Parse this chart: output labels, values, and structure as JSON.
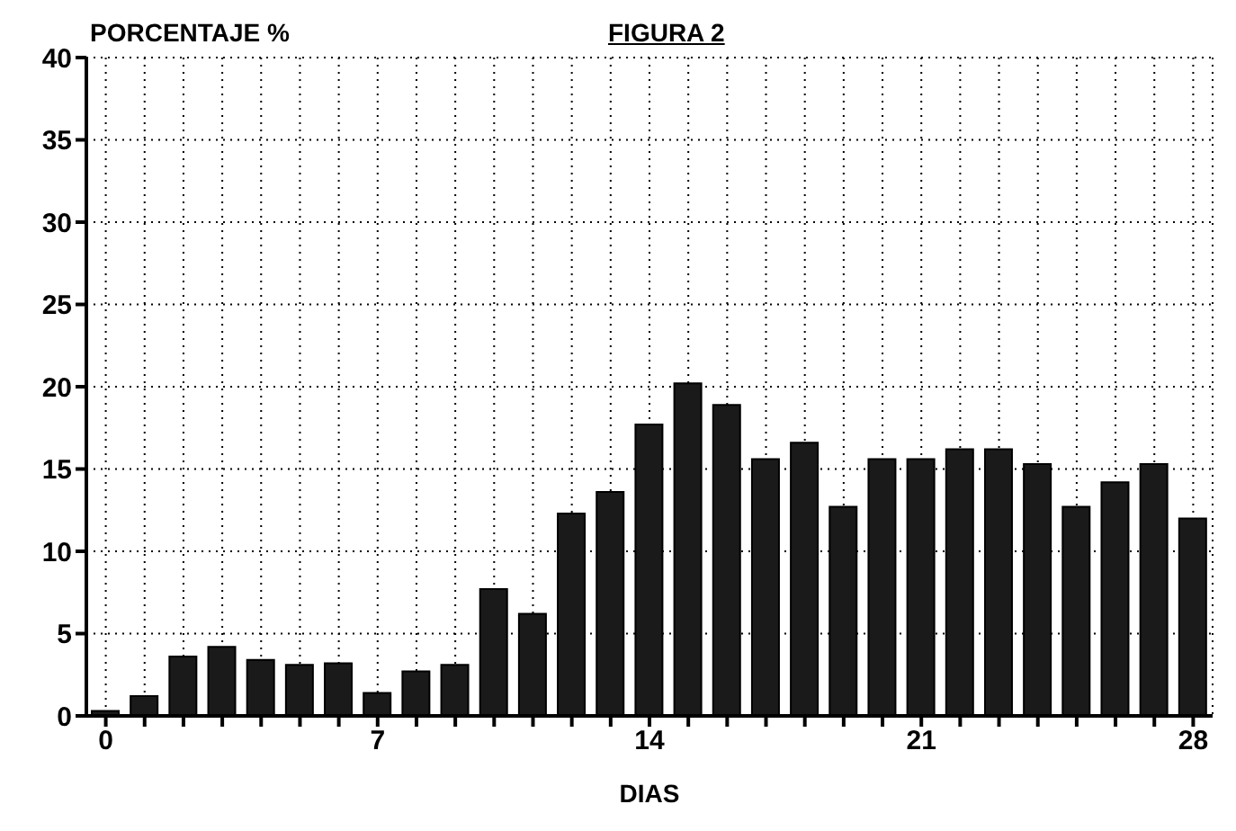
{
  "chart_data": {
    "type": "bar",
    "title": "FIGURA 2",
    "xlabel": "DIAS",
    "ylabel": "PORCENTAJE %",
    "x": [
      0,
      1,
      2,
      3,
      4,
      5,
      6,
      7,
      8,
      9,
      10,
      11,
      12,
      13,
      14,
      15,
      16,
      17,
      18,
      19,
      20,
      21,
      22,
      23,
      24,
      25,
      26,
      27,
      28
    ],
    "values": [
      0.3,
      1.2,
      3.6,
      4.2,
      3.4,
      3.1,
      3.2,
      1.4,
      2.7,
      3.1,
      7.7,
      6.2,
      12.3,
      13.6,
      17.7,
      20.2,
      18.9,
      15.6,
      16.6,
      12.7,
      15.6,
      15.6,
      16.2,
      16.2,
      15.3,
      12.7,
      14.2,
      15.3,
      12.0
    ],
    "color": "#1a1a1a",
    "xlim": [
      -0.5,
      28.5
    ],
    "xticks": [
      0,
      {
        "value": 1,
        "label": null
      },
      {
        "value": 2,
        "label": null
      },
      {
        "value": 3,
        "label": null
      },
      {
        "value": 4,
        "label": null
      },
      {
        "value": 5,
        "label": null
      },
      {
        "value": 6,
        "label": null
      },
      7,
      {
        "value": 8,
        "label": null
      },
      {
        "value": 9,
        "label": null
      },
      {
        "value": 10,
        "label": null
      },
      {
        "value": 11,
        "label": null
      },
      {
        "value": 12,
        "label": null
      },
      {
        "value": 13,
        "label": null
      },
      14,
      {
        "value": 15,
        "label": null
      },
      {
        "value": 16,
        "label": null
      },
      {
        "value": 17,
        "label": null
      },
      {
        "value": 18,
        "label": null
      },
      {
        "value": 19,
        "label": null
      },
      {
        "value": 20,
        "label": null
      },
      21,
      {
        "value": 22,
        "label": null
      },
      {
        "value": 23,
        "label": null
      },
      {
        "value": 24,
        "label": null
      },
      {
        "value": 25,
        "label": null
      },
      {
        "value": 26,
        "label": null
      },
      {
        "value": 27,
        "label": null
      },
      28
    ],
    "ylim": [
      0,
      40
    ],
    "yticks": [
      0,
      5,
      10,
      15,
      20,
      25,
      30,
      35,
      40
    ],
    "grid": true
  }
}
